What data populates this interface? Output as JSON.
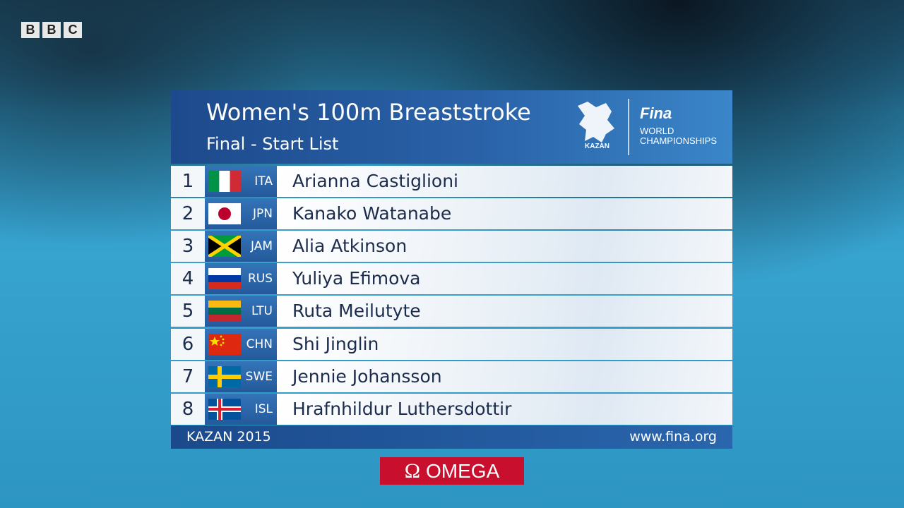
{
  "broadcaster": [
    "B",
    "B",
    "C"
  ],
  "header": {
    "title": "Women's 100m Breaststroke",
    "subtitle": "Final - Start List",
    "logo": {
      "city": "KAZAN",
      "org": "Fina",
      "line1": "WORLD",
      "line2": "CHAMPIONSHIPS"
    }
  },
  "rows": [
    {
      "lane": 1,
      "country": "ITA",
      "name": "Arianna Castiglioni"
    },
    {
      "lane": 2,
      "country": "JPN",
      "name": "Kanako Watanabe"
    },
    {
      "lane": 3,
      "country": "JAM",
      "name": "Alia Atkinson"
    },
    {
      "lane": 4,
      "country": "RUS",
      "name": "Yuliya Efimova"
    },
    {
      "lane": 5,
      "country": "LTU",
      "name": "Ruta Meilutyte"
    },
    {
      "lane": 6,
      "country": "CHN",
      "name": "Shi Jinglin"
    },
    {
      "lane": 7,
      "country": "SWE",
      "name": "Jennie Johansson"
    },
    {
      "lane": 8,
      "country": "ISL",
      "name": "Hrafnhildur Luthersdottir"
    }
  ],
  "footer": {
    "left": "KAZAN 2015",
    "right": "www.fina.org"
  },
  "sponsor": {
    "symbol": "Ω",
    "name": "OMEGA"
  }
}
